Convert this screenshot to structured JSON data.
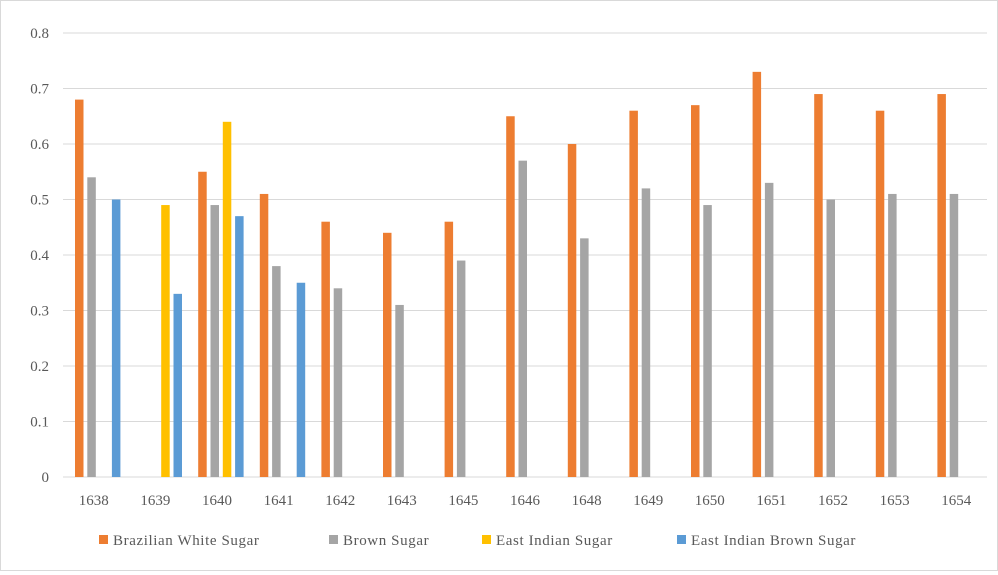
{
  "chart_data": {
    "type": "bar",
    "categories": [
      "1638",
      "1639",
      "1640",
      "1641",
      "1642",
      "1643",
      "1645",
      "1646",
      "1648",
      "1649",
      "1650",
      "1651",
      "1652",
      "1653",
      "1654"
    ],
    "series": [
      {
        "name": "Brazilian White Sugar",
        "color": "#ED7D31",
        "values": [
          0.68,
          null,
          0.55,
          0.51,
          0.46,
          0.44,
          0.46,
          0.65,
          0.6,
          0.66,
          0.67,
          0.73,
          0.69,
          0.66,
          0.69
        ]
      },
      {
        "name": "Brown Sugar",
        "color": "#A5A5A5",
        "values": [
          0.54,
          null,
          0.49,
          0.38,
          0.34,
          0.31,
          0.39,
          0.57,
          0.43,
          0.52,
          0.49,
          0.53,
          0.5,
          0.51,
          0.51
        ]
      },
      {
        "name": "East Indian Sugar",
        "color": "#FFC000",
        "values": [
          null,
          0.49,
          0.64,
          null,
          null,
          null,
          null,
          null,
          null,
          null,
          null,
          null,
          null,
          null,
          null
        ]
      },
      {
        "name": "East Indian Brown Sugar",
        "color": "#5B9BD5",
        "values": [
          0.5,
          0.33,
          0.47,
          0.35,
          null,
          null,
          null,
          null,
          null,
          null,
          null,
          null,
          null,
          null,
          null
        ]
      }
    ],
    "y_ticks": [
      "0",
      "0.1",
      "0.2",
      "0.3",
      "0.4",
      "0.5",
      "0.6",
      "0.7",
      "0.8"
    ],
    "ylim": [
      0,
      0.8
    ],
    "grid": "horizontal",
    "legend_position": "bottom",
    "axis_color": "#d9d9d9",
    "grid_color": "#d9d9d9"
  }
}
